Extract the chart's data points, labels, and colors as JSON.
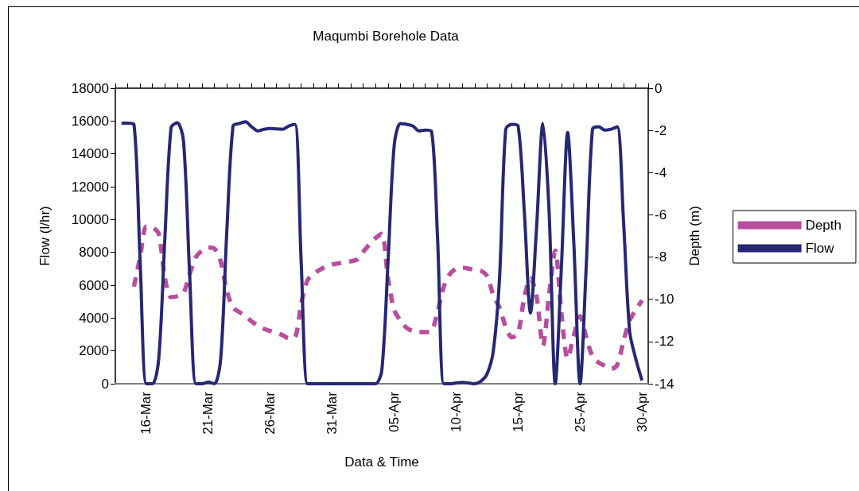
{
  "chart_data": {
    "type": "line",
    "title": "Maqumbi Borehole Data",
    "xlabel": "Data & Time",
    "ylabel": "Flow (l/hr)",
    "y2label": "Depth (m)",
    "categories": [
      null,
      null,
      null,
      null,
      null,
      "16-Mar",
      null,
      null,
      null,
      null,
      null,
      null,
      null,
      null,
      null,
      "21-Mar",
      null,
      null,
      null,
      null,
      null,
      null,
      null,
      null,
      null,
      "26-Mar",
      null,
      null,
      null,
      null,
      null,
      null,
      null,
      null,
      null,
      "31-Mar",
      null,
      null,
      null,
      null,
      null,
      null,
      null,
      null,
      null,
      "05-Apr",
      null,
      null,
      null,
      null,
      null,
      null,
      null,
      null,
      null,
      "10-Apr",
      null,
      null,
      null,
      null,
      null,
      null,
      null,
      null,
      null,
      "15-Apr",
      null,
      null,
      null,
      null,
      null,
      null,
      null,
      null,
      null,
      "25-Apr",
      null,
      null,
      null,
      null,
      null,
      null,
      null,
      null,
      null,
      "30-Apr",
      null
    ],
    "ylim": [
      0,
      18000
    ],
    "yticks": [
      0,
      2000,
      4000,
      6000,
      8000,
      10000,
      12000,
      14000,
      16000,
      18000
    ],
    "y2lim": [
      -14,
      0
    ],
    "y2ticks": [
      -14,
      -12,
      -10,
      -8,
      -6,
      -4,
      -2,
      0
    ],
    "grid": false,
    "legend": "right",
    "marker": "none",
    "series": [
      {
        "name": "Depth",
        "color": "#b84f9e",
        "axis": "y2",
        "line_style": "dashed",
        "values": [
          null,
          null,
          null,
          -9.4,
          -8.0,
          -6.55,
          -6.6,
          -6.9,
          -9.0,
          -9.9,
          -9.85,
          -9.7,
          -8.8,
          -8.0,
          -7.7,
          -7.55,
          -7.6,
          -8.2,
          -9.6,
          -10.4,
          -10.6,
          -10.8,
          -11.05,
          -11.25,
          -11.4,
          -11.5,
          -11.6,
          -11.7,
          -11.85,
          -11.8,
          -10.2,
          -9.1,
          -8.8,
          -8.6,
          -8.45,
          -8.35,
          -8.3,
          -8.25,
          -8.2,
          -8.12,
          -7.75,
          -7.4,
          -7.1,
          -6.9,
          -9.0,
          -10.5,
          -11.0,
          -11.35,
          -11.5,
          -11.55,
          -11.55,
          -11.5,
          -10.6,
          -9.4,
          -8.8,
          -8.55,
          -8.5,
          -8.55,
          -8.6,
          -8.65,
          -8.9,
          -9.8,
          -10.4,
          -11.3,
          -11.8,
          -11.6,
          -9.9,
          -9.0,
          -9.9,
          -12.2,
          -9.8,
          -7.7,
          -10.7,
          -12.8,
          -11.7,
          -10.8,
          -11.8,
          -12.7,
          -13.0,
          -13.15,
          -13.3,
          -13.1,
          -12.0,
          -11.0,
          -10.5,
          -10.05,
          null
        ]
      },
      {
        "name": "Flow",
        "color": "#262873",
        "line_style": "solid",
        "values": [
          null,
          15870,
          15870,
          15800,
          7500,
          0,
          0,
          1500,
          8900,
          15600,
          15900,
          14800,
          6600,
          0,
          0,
          100,
          0,
          1500,
          9350,
          15700,
          15850,
          15950,
          15650,
          15400,
          15500,
          15550,
          15520,
          15500,
          15700,
          15800,
          7350,
          0,
          0,
          0,
          0,
          0,
          0,
          0,
          0,
          0,
          0,
          0,
          0,
          800,
          7350,
          14500,
          15850,
          15800,
          15700,
          15400,
          15450,
          15400,
          8900,
          0,
          0,
          50,
          80,
          50,
          0,
          150,
          600,
          2000,
          6400,
          15500,
          15800,
          15700,
          10500,
          4300,
          9650,
          15850,
          10500,
          0,
          7200,
          15300,
          8500,
          0,
          7200,
          15500,
          15650,
          15450,
          15500,
          15650,
          10000,
          3200,
          1500,
          200,
          null
        ]
      }
    ]
  }
}
